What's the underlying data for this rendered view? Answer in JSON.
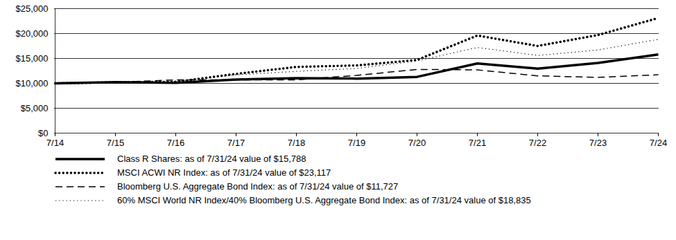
{
  "chart_data": {
    "type": "line",
    "categories": [
      "7/14",
      "7/15",
      "7/16",
      "7/17",
      "7/18",
      "7/19",
      "7/20",
      "7/21",
      "7/22",
      "7/23",
      "7/24"
    ],
    "ylim": [
      0,
      25000
    ],
    "yticks": [
      {
        "value": 0,
        "label": "$0"
      },
      {
        "value": 5000,
        "label": "$5,000"
      },
      {
        "value": 10000,
        "label": "$10,000"
      },
      {
        "value": 15000,
        "label": "$15,000"
      },
      {
        "value": 20000,
        "label": "$20,000"
      },
      {
        "value": 25000,
        "label": "$25,000"
      }
    ],
    "grid": true,
    "legend": "bottom",
    "series": [
      {
        "name": "Class R Shares: as of 7/31/24 value of $15,788",
        "color": "#000000",
        "line_style": "thick_solid",
        "values": [
          10000,
          10250,
          10100,
          10750,
          11050,
          10950,
          11300,
          14000,
          12950,
          14100,
          15788
        ]
      },
      {
        "name": "MSCI ACWI NR Index: as of 7/31/24 value of $23,117",
        "color": "#000000",
        "line_style": "thick_dotted",
        "values": [
          10000,
          10200,
          10300,
          11900,
          13300,
          13600,
          14700,
          19600,
          17500,
          19700,
          23117
        ]
      },
      {
        "name": "Bloomberg U.S. Aggregate Bond Index: as of 7/31/24 value of $11,727",
        "color": "#000000",
        "line_style": "dashed",
        "values": [
          10000,
          10200,
          10700,
          10700,
          10700,
          11600,
          12800,
          12700,
          11500,
          11200,
          11727
        ]
      },
      {
        "name": "60% MSCI World NR Index/40% Bloomberg U.S. Aggregate Bond Index: as of 7/31/24 value of $18,835",
        "color": "#000000",
        "line_style": "dotted",
        "values": [
          10000,
          10200,
          10400,
          11700,
          12400,
          13000,
          14500,
          17200,
          15600,
          16700,
          18835
        ]
      }
    ]
  }
}
